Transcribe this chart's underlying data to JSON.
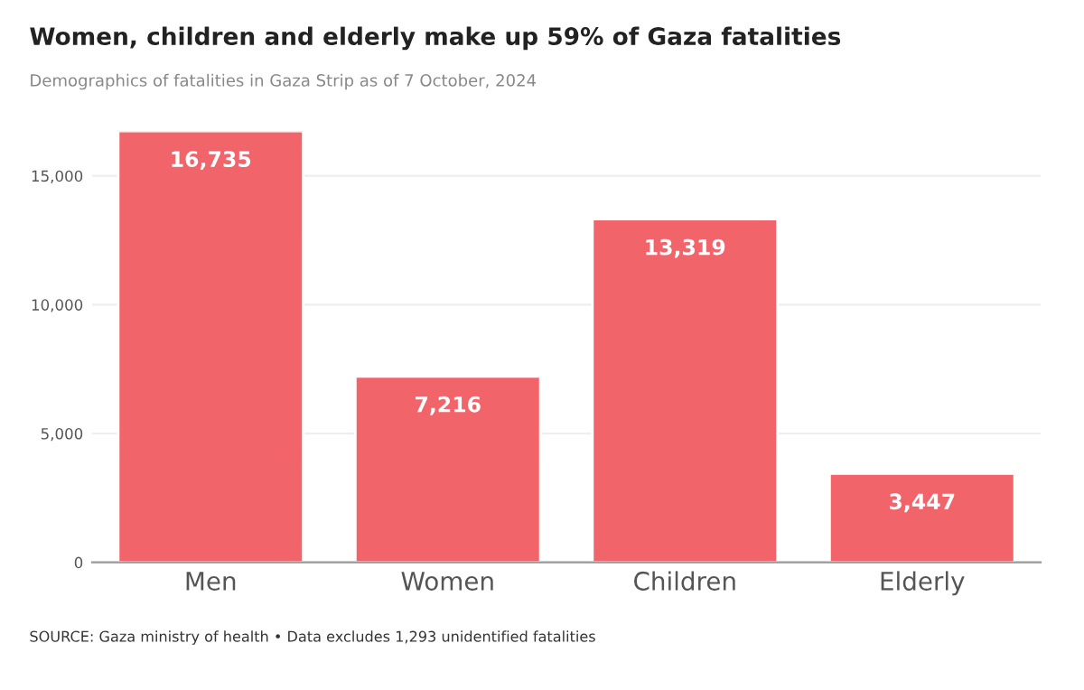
{
  "chart_data": {
    "type": "bar",
    "title": "Women, children and elderly make up 59% of Gaza fatalities",
    "subtitle": "Demographics of fatalities in Gaza Strip as of 7 October, 2024",
    "categories": [
      "Men",
      "Women",
      "Children",
      "Elderly"
    ],
    "values": [
      16735,
      7216,
      13319,
      3447
    ],
    "color": "#f0646a",
    "value_labels": [
      "16,735",
      "7,216",
      "13,319",
      "3,447"
    ],
    "ylim": [
      0,
      16735
    ],
    "yticks": [
      {
        "value": 0,
        "label": "0"
      },
      {
        "value": 5000,
        "label": "5,000"
      },
      {
        "value": 10000,
        "label": "10,000"
      },
      {
        "value": 15000,
        "label": "15,000"
      }
    ],
    "grid": "y",
    "legend": false,
    "annotations": [
      "SOURCE: Gaza ministry of health • Data excludes 1,293 unidentified fatalities"
    ]
  }
}
